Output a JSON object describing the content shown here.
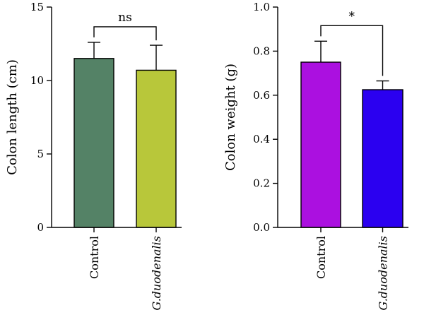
{
  "chart_data": [
    {
      "type": "bar",
      "categories": [
        "Control",
        "G.duodenalis"
      ],
      "values": [
        11.5,
        10.7
      ],
      "error_upper": [
        12.6,
        12.4
      ],
      "bar_colors": [
        "#548266",
        "#b8c73a"
      ],
      "ylabel": "Colon length (cm)",
      "ylim": [
        0,
        15
      ],
      "yticks": [
        "0",
        "5",
        "10",
        "15"
      ],
      "yticks_values": [
        0,
        5,
        10,
        15
      ],
      "significance": "ns",
      "grid": false
    },
    {
      "type": "bar",
      "categories": [
        "Control",
        "G.duodenalis"
      ],
      "values": [
        0.75,
        0.625
      ],
      "error_upper": [
        0.845,
        0.665
      ],
      "bar_colors": [
        "#ab10e0",
        "#2b00f0"
      ],
      "ylabel": "Colon weight (g)",
      "ylim": [
        0,
        1.0
      ],
      "yticks": [
        "0.0",
        "0.2",
        "0.4",
        "0.6",
        "0.8",
        "1.0"
      ],
      "yticks_values": [
        0,
        0.2,
        0.4,
        0.6,
        0.8,
        1.0
      ],
      "significance": "*",
      "grid": false
    }
  ]
}
